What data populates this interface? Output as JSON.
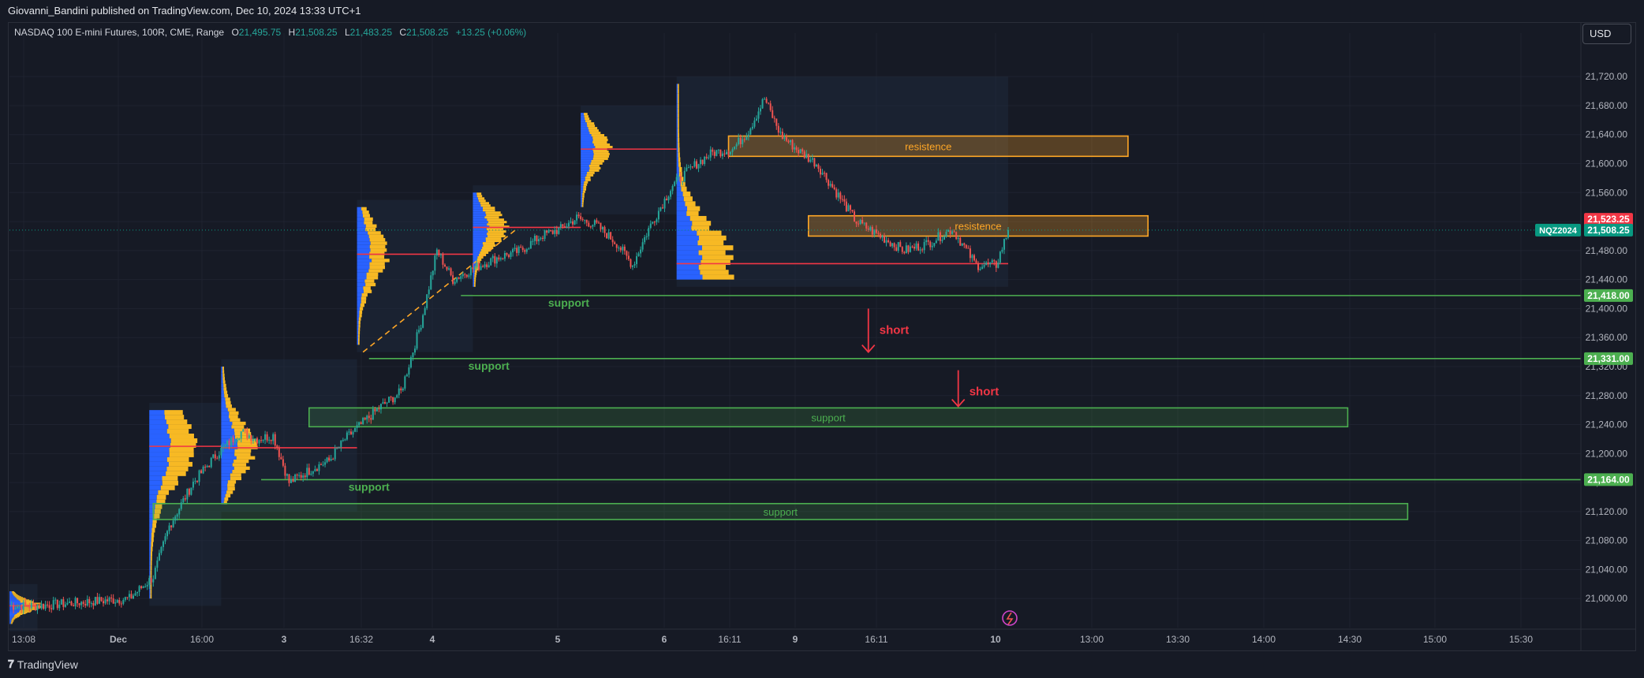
{
  "header": {
    "publisher": "Giovanni_Bandini published on TradingView.com, Dec 10, 2024 13:33 UTC+1"
  },
  "legend": {
    "symbol": "NASDAQ 100 E-mini Futures, 100R, CME, Range",
    "open": "21,495.75",
    "high": "21,508.25",
    "low": "21,483.25",
    "close": "21,508.25",
    "change": "+13.25 (+0.06%)"
  },
  "currency_button": "USD",
  "footer": {
    "brand": "TradingView",
    "logo_icon": "tv-logo-icon"
  },
  "colors": {
    "background": "#161a25",
    "grid": "#1f2330",
    "up": "#26a69a",
    "down": "#ef5350",
    "profile_orange": "#f7b924",
    "profile_blue": "#2962ff",
    "support": "#4caf50",
    "resistance": "#ffa726",
    "short": "#f23645"
  },
  "chart_data": {
    "type": "candlestick",
    "y_range": [
      20960,
      21780
    ],
    "y_ticks": [
      "21,720.00",
      "21,680.00",
      "21,640.00",
      "21,600.00",
      "21,560.00",
      "21,520.00",
      "21,480.00",
      "21,440.00",
      "21,400.00",
      "21,360.00",
      "21,320.00",
      "21,280.00",
      "21,240.00",
      "21,200.00",
      "21,160.00",
      "21,120.00",
      "21,080.00",
      "21,040.00",
      "21,000.00"
    ],
    "y_tick_values": [
      21720,
      21680,
      21640,
      21600,
      21560,
      21520,
      21480,
      21440,
      21400,
      21360,
      21320,
      21280,
      21240,
      21200,
      21160,
      21120,
      21080,
      21040,
      21000
    ],
    "x_ticks": [
      "13:08",
      "Dec",
      "16:00",
      "3",
      "16:32",
      "4",
      "5",
      "6",
      "16:11",
      "9",
      "16:11",
      "10",
      "13:00",
      "13:30",
      "14:00",
      "14:30",
      "15:00",
      "15:30"
    ],
    "price_tags": [
      {
        "label": "21,523.25",
        "value": 21523.25,
        "color": "#f23645"
      },
      {
        "label": "21,508.25",
        "value": 21508.25,
        "color": "#089981"
      },
      {
        "label": "21,418.00",
        "value": 21418,
        "color": "#4caf50"
      },
      {
        "label": "21,331.00",
        "value": 21331,
        "color": "#4caf50"
      },
      {
        "label": "21,164.00",
        "value": 21164,
        "color": "#4caf50"
      }
    ],
    "symbol_tag": "NQZ2024",
    "last_price": 21508.25,
    "anchors": [
      [
        0,
        20990
      ],
      [
        14,
        20990
      ],
      [
        60,
        21000
      ],
      [
        72,
        21030
      ],
      [
        80,
        21100
      ],
      [
        92,
        21160
      ],
      [
        104,
        21200
      ],
      [
        116,
        21230
      ],
      [
        124,
        21220
      ],
      [
        132,
        21225
      ],
      [
        140,
        21160
      ],
      [
        152,
        21180
      ],
      [
        160,
        21190
      ],
      [
        168,
        21220
      ],
      [
        176,
        21240
      ],
      [
        186,
        21265
      ],
      [
        196,
        21285
      ],
      [
        206,
        21380
      ],
      [
        214,
        21480
      ],
      [
        222,
        21440
      ],
      [
        232,
        21455
      ],
      [
        244,
        21470
      ],
      [
        256,
        21480
      ],
      [
        266,
        21500
      ],
      [
        276,
        21510
      ],
      [
        284,
        21525
      ],
      [
        294,
        21515
      ],
      [
        304,
        21490
      ],
      [
        312,
        21460
      ],
      [
        320,
        21510
      ],
      [
        332,
        21570
      ],
      [
        344,
        21600
      ],
      [
        352,
        21615
      ],
      [
        362,
        21620
      ],
      [
        370,
        21645
      ],
      [
        378,
        21690
      ],
      [
        386,
        21640
      ],
      [
        394,
        21620
      ],
      [
        404,
        21600
      ],
      [
        414,
        21560
      ],
      [
        424,
        21520
      ],
      [
        436,
        21500
      ],
      [
        448,
        21480
      ],
      [
        460,
        21490
      ],
      [
        472,
        21510
      ],
      [
        484,
        21460
      ],
      [
        494,
        21460
      ],
      [
        500,
        21508
      ]
    ],
    "profiles": [
      {
        "start": 0,
        "end": 14,
        "poc": 20990,
        "lo": 20965,
        "hi": 21010,
        "width": 40
      },
      {
        "start": 70,
        "end": 106,
        "poc": 21210,
        "lo": 21000,
        "hi": 21260,
        "width": 60
      },
      {
        "start": 106,
        "end": 174,
        "poc": 21208,
        "lo": 21130,
        "hi": 21320,
        "width": 45
      },
      {
        "start": 174,
        "end": 232,
        "poc": 21475,
        "lo": 21350,
        "hi": 21540,
        "width": 40
      },
      {
        "start": 232,
        "end": 286,
        "poc": 21512,
        "lo": 21430,
        "hi": 21560,
        "width": 45
      },
      {
        "start": 286,
        "end": 334,
        "poc": 21620,
        "lo": 21540,
        "hi": 21670,
        "width": 40
      },
      {
        "start": 334,
        "end": 500,
        "poc": 21462,
        "lo": 21440,
        "hi": 21710,
        "width": 75
      }
    ],
    "zones": [
      {
        "label": "resistence",
        "kind": "resistance",
        "y1": 21610,
        "y2": 21638,
        "x_start": 360,
        "x_end": 560
      },
      {
        "label": "resistence",
        "kind": "resistance",
        "y1": 21500,
        "y2": 21528,
        "x_start": 400,
        "x_end": 570
      },
      {
        "label": "support",
        "kind": "support",
        "y1": 21237,
        "y2": 21263,
        "x_start": 150,
        "x_end": 670
      },
      {
        "label": "support",
        "kind": "support",
        "y1": 21109,
        "y2": 21131,
        "x_start": 72,
        "x_end": 700
      }
    ],
    "support_lines": [
      {
        "label": "support",
        "value": 21418,
        "x_start": 226,
        "label_at": 280
      },
      {
        "label": "support",
        "value": 21331,
        "x_start": 180,
        "label_at": 240
      },
      {
        "label": "support",
        "value": 21164,
        "x_start": 126,
        "label_at": 180
      }
    ],
    "short_arrows": [
      {
        "label": "short",
        "from": 21400,
        "to": 21340,
        "at": 430
      },
      {
        "label": "short",
        "from": 21315,
        "to": 21265,
        "at": 475
      }
    ],
    "trendline": {
      "from_index": 177,
      "from_value": 21340,
      "to_index": 254,
      "to_value": 21510
    }
  }
}
